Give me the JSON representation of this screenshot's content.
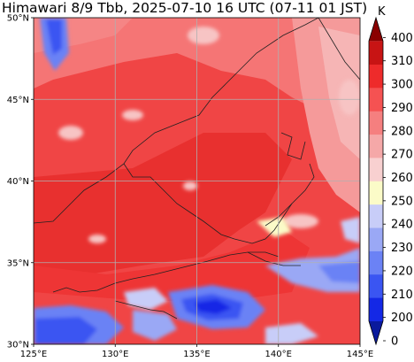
{
  "title": "Himawari 8/9 Tbb, 2025-07-10 16 UTC (07-11 01 JST)",
  "map": {
    "lon_range": [
      125,
      145
    ],
    "lat_range": [
      30,
      50
    ],
    "lon_ticks": [
      {
        "value": 125,
        "label": "125°E"
      },
      {
        "value": 130,
        "label": "130°E"
      },
      {
        "value": 135,
        "label": "135°E"
      },
      {
        "value": 140,
        "label": "140°E"
      },
      {
        "value": 145,
        "label": "145°E"
      }
    ],
    "lat_ticks": [
      {
        "value": 30,
        "label": "30°N"
      },
      {
        "value": 35,
        "label": "35°N"
      },
      {
        "value": 40,
        "label": "40°N"
      },
      {
        "value": 45,
        "label": "45°N"
      },
      {
        "value": 50,
        "label": "50°N"
      }
    ],
    "gridlines": true
  },
  "colorbar": {
    "unit": "K",
    "levels": [
      200,
      210,
      220,
      230,
      240,
      250,
      260,
      270,
      280,
      290,
      300,
      310,
      400
    ],
    "labels": [
      "0",
      "200",
      "210",
      "220",
      "230",
      "240",
      "250",
      "260",
      "270",
      "280",
      "290",
      "300",
      "310",
      "400"
    ],
    "colors": [
      "#0a1a9c",
      "#1428e6",
      "#3a55f2",
      "#6b82f5",
      "#9aa8f5",
      "#c8cdf8",
      "#fbfbc8",
      "#f8d0d0",
      "#f5a8a8",
      "#f57f7f",
      "#f55252",
      "#ee2b2b",
      "#c81414",
      "#8a0000"
    ]
  }
}
